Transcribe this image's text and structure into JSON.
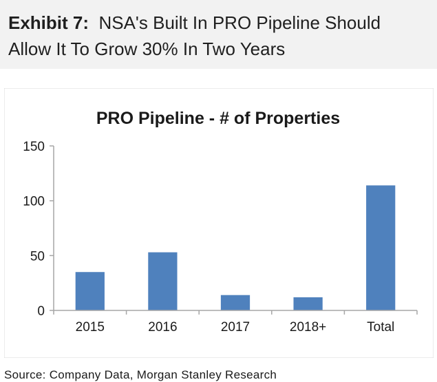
{
  "exhibit": {
    "label": "Exhibit 7:",
    "title_line1": "NSA's Built In PRO Pipeline Should",
    "title_line2": "Allow It To Grow 30% In Two Years"
  },
  "chart_data": {
    "type": "bar",
    "title": "PRO Pipeline - # of Properties",
    "categories": [
      "2015",
      "2016",
      "2017",
      "2018+",
      "Total"
    ],
    "values": [
      35,
      53,
      14,
      12,
      114
    ],
    "xlabel": "",
    "ylabel": "",
    "ylim": [
      0,
      150
    ],
    "yticks": [
      "0",
      "50",
      "100",
      "150"
    ],
    "grid": false,
    "legend": "none",
    "bar_color": "#4f81bd",
    "axis_color": "#a6a6a6"
  },
  "source": "Source: Company Data, Morgan Stanley Research"
}
